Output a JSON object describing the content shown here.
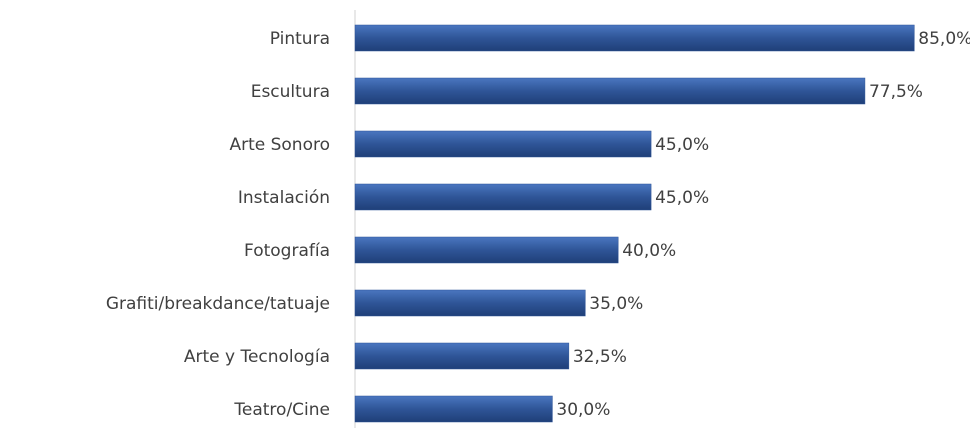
{
  "chart_data": {
    "type": "bar",
    "orientation": "horizontal",
    "categories": [
      "Pintura",
      "Escultura",
      "Arte Sonoro",
      "Instalación",
      "Fotografía",
      "Grafiti/breakdance/tatuaje",
      "Arte y Tecnología",
      "Teatro/Cine"
    ],
    "values": [
      85,
      77.5,
      45,
      45,
      40,
      35,
      32.5,
      30
    ],
    "value_labels": [
      "85,0%",
      "77,5%",
      "45,0%",
      "45,0%",
      "40,0%",
      "35,0%",
      "32,5%",
      "30,0%"
    ],
    "color": "#2f5597"
  }
}
